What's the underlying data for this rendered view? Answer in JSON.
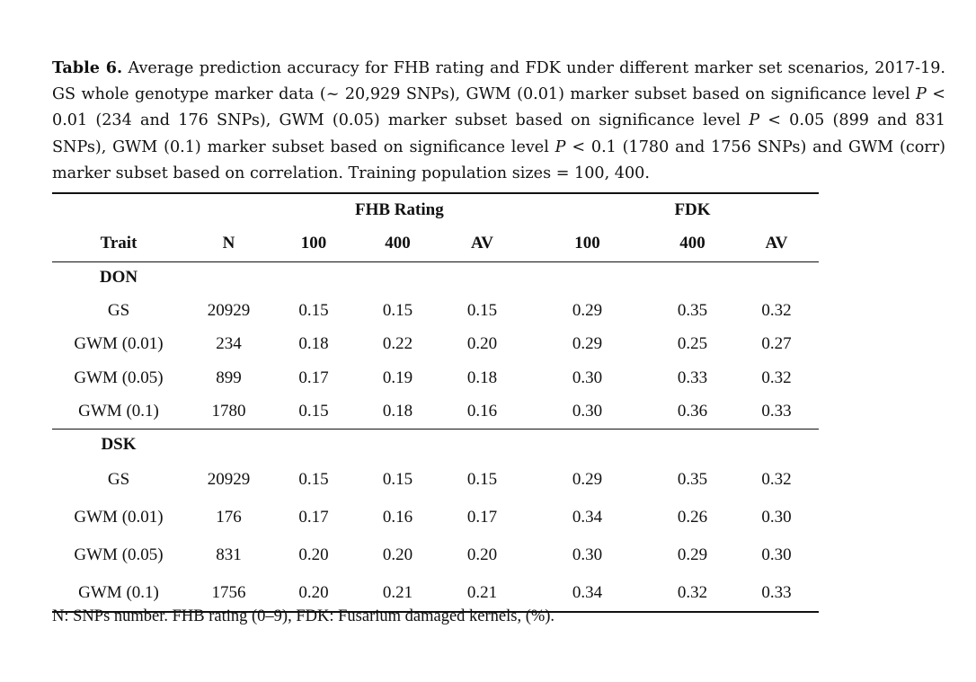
{
  "caption": {
    "label": "Table 6.",
    "part1": " Average prediction accuracy for FHB rating and FDK under different marker set scenarios, 2017-19. GS whole genotype marker data (~ 20,929 SNPs), GWM (0.01) marker subset based on significance level ",
    "p1": "P",
    "part2": " < 0.01 (234 and 176 SNPs), GWM (0.05) marker subset based on significance level ",
    "p2": "P",
    "part3": " < 0.05 (899 and 831 SNPs), GWM (0.1) marker subset based on significance level ",
    "p3": "P",
    "part4": " < 0.1 (1780 and 1756 SNPs) and GWM (corr) marker subset based on correlation. Training population sizes = 100, 400."
  },
  "table": {
    "group_headers": {
      "fhb": "FHB Rating",
      "fdk": "FDK"
    },
    "columns": [
      "Trait",
      "N",
      "100",
      "400",
      "AV",
      "100",
      "400",
      "AV"
    ],
    "sections": [
      {
        "name": "DON",
        "rows": [
          {
            "trait": "GS",
            "cells": [
              "20929",
              "0.15",
              "0.15",
              "0.15",
              "0.29",
              "0.35",
              "0.32"
            ]
          },
          {
            "trait": "GWM (0.01)",
            "cells": [
              "234",
              "0.18",
              "0.22",
              "0.20",
              "0.29",
              "0.25",
              "0.27"
            ]
          },
          {
            "trait": "GWM (0.05)",
            "cells": [
              "899",
              "0.17",
              "0.19",
              "0.18",
              "0.30",
              "0.33",
              "0.32"
            ]
          },
          {
            "trait": "GWM (0.1)",
            "cells": [
              "1780",
              "0.15",
              "0.18",
              "0.16",
              "0.30",
              "0.36",
              "0.33"
            ]
          }
        ]
      },
      {
        "name": "DSK",
        "rows": [
          {
            "trait": "GS",
            "cells": [
              "20929",
              "0.15",
              "0.15",
              "0.15",
              "0.29",
              "0.35",
              "0.32"
            ]
          },
          {
            "trait": "GWM (0.01)",
            "cells": [
              "176",
              "0.17",
              "0.16",
              "0.17",
              "0.34",
              "0.26",
              "0.30"
            ]
          },
          {
            "trait": "GWM (0.05)",
            "cells": [
              "831",
              "0.20",
              "0.20",
              "0.20",
              "0.30",
              "0.29",
              "0.30"
            ]
          },
          {
            "trait": "GWM (0.1)",
            "cells": [
              "1756",
              "0.20",
              "0.21",
              "0.21",
              "0.34",
              "0.32",
              "0.33"
            ]
          }
        ]
      }
    ]
  },
  "footnote": "N: SNPs number. FHB rating (0–9), FDK: Fusarium damaged kernels, (%)."
}
